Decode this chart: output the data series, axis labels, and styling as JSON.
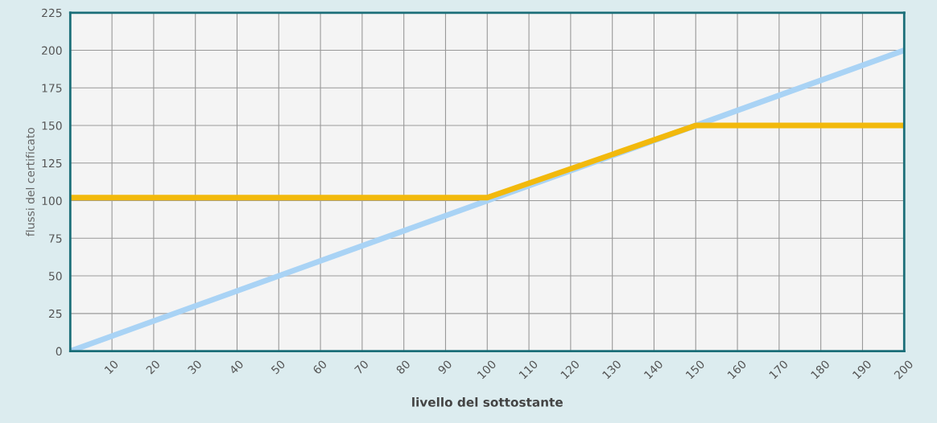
{
  "chart_data": {
    "type": "line",
    "xlabel": "livello del sottostante",
    "ylabel": "flussi del certificato",
    "xlim": [
      0,
      200
    ],
    "xticks": [
      10,
      20,
      30,
      40,
      50,
      60,
      70,
      80,
      90,
      100,
      110,
      120,
      130,
      140,
      150,
      160,
      170,
      180,
      190,
      200
    ],
    "ylim": [
      0,
      225
    ],
    "yticks": [
      0,
      25,
      50,
      75,
      100,
      125,
      150,
      175,
      200,
      225
    ],
    "grid": true,
    "legend": false,
    "marker": "none",
    "line_style": "solid",
    "series": [
      {
        "color": "#a9d3f5",
        "x": [
          0,
          200
        ],
        "values": [
          0,
          200
        ]
      },
      {
        "color": "#f2b90c",
        "x": [
          0,
          100,
          150,
          200
        ],
        "values": [
          102,
          102,
          150,
          150
        ]
      }
    ]
  }
}
